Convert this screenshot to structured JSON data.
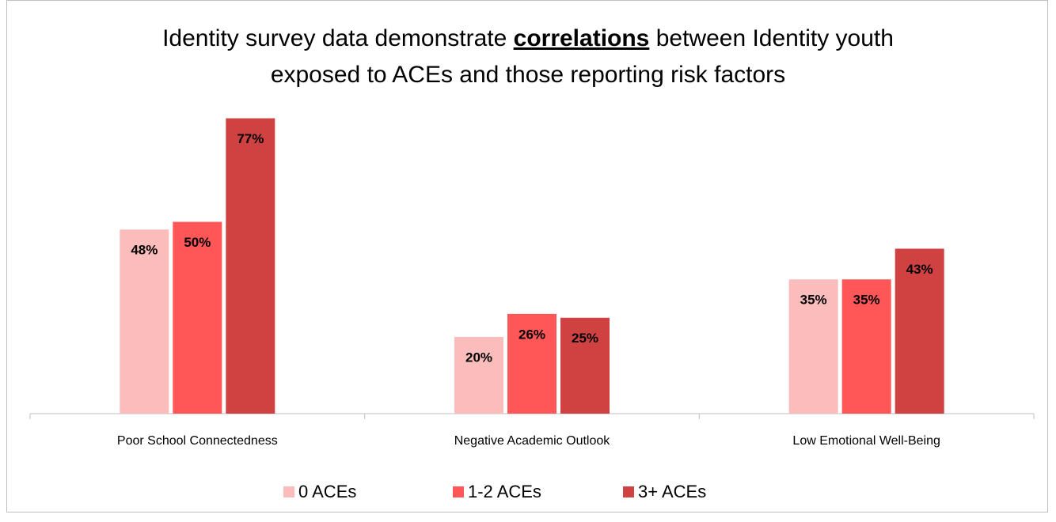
{
  "chart_data": {
    "type": "bar",
    "title": [
      "Identity survey data demonstrate ",
      "correlations",
      " between Identity youth exposed to ACEs and those reporting risk factors"
    ],
    "categories": [
      "Poor School Connectedness",
      "Negative Academic Outlook",
      "Low Emotional Well-Being"
    ],
    "series": [
      {
        "name": "0 ACEs",
        "color": "#fbbcbc",
        "values": [
          48,
          20,
          35
        ],
        "value_labels": [
          "48%",
          "20%",
          "35%"
        ]
      },
      {
        "name": "1-2 ACEs",
        "color": "#ff5757",
        "values": [
          50,
          26,
          35
        ],
        "value_labels": [
          "50%",
          "26%",
          "35%"
        ]
      },
      {
        "name": "3+ ACEs",
        "color": "#d04242",
        "values": [
          77,
          25,
          43
        ],
        "value_labels": [
          "77%",
          "25%",
          "43%"
        ]
      }
    ],
    "legend": "bottom"
  }
}
